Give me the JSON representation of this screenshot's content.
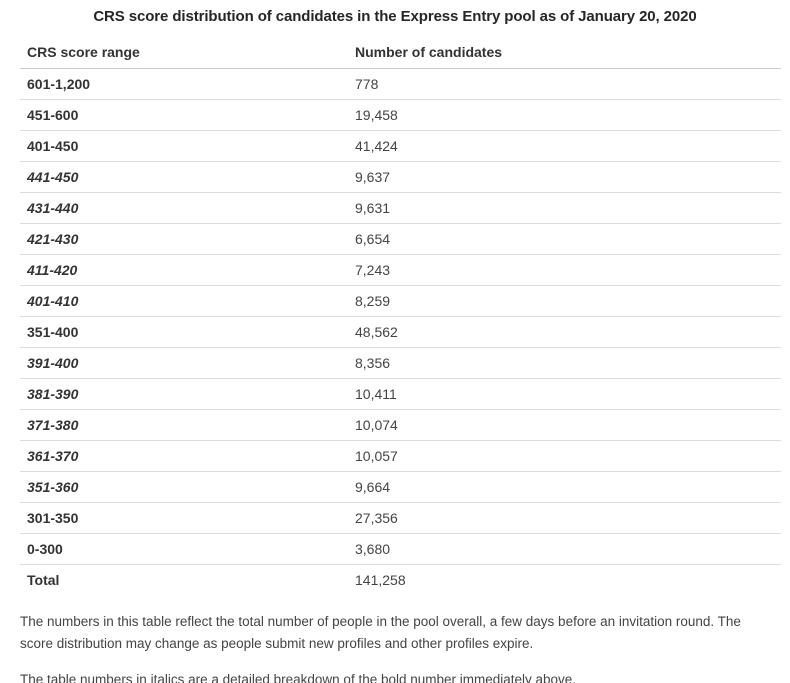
{
  "title": "CRS score distribution of candidates in the Express Entry pool as of January 20, 2020",
  "table": {
    "columns": [
      "CRS score range",
      "Number of candidates"
    ],
    "rows": [
      {
        "range": "601-1,200",
        "candidates": "778",
        "style": "main"
      },
      {
        "range": "451-600",
        "candidates": "19,458",
        "style": "main"
      },
      {
        "range": "401-450",
        "candidates": "41,424",
        "style": "main"
      },
      {
        "range": "441-450",
        "candidates": "9,637",
        "style": "detail"
      },
      {
        "range": "431-440",
        "candidates": "9,631",
        "style": "detail"
      },
      {
        "range": "421-430",
        "candidates": "6,654",
        "style": "detail"
      },
      {
        "range": "411-420",
        "candidates": "7,243",
        "style": "detail"
      },
      {
        "range": "401-410",
        "candidates": "8,259",
        "style": "detail"
      },
      {
        "range": "351-400",
        "candidates": "48,562",
        "style": "main"
      },
      {
        "range": "391-400",
        "candidates": "8,356",
        "style": "detail"
      },
      {
        "range": "381-390",
        "candidates": "10,411",
        "style": "detail"
      },
      {
        "range": "371-380",
        "candidates": "10,074",
        "style": "detail"
      },
      {
        "range": "361-370",
        "candidates": "10,057",
        "style": "detail"
      },
      {
        "range": "351-360",
        "candidates": "9,664",
        "style": "detail"
      },
      {
        "range": "301-350",
        "candidates": "27,356",
        "style": "main"
      },
      {
        "range": "0-300",
        "candidates": "3,680",
        "style": "main"
      },
      {
        "range": "Total",
        "candidates": "141,258",
        "style": "total"
      }
    ]
  },
  "notes": {
    "note1": "The numbers in this table reflect the total number of people in the pool overall, a few days before an invitation round. The score distribution may change as people submit new profiles and other profiles expire.",
    "note2": "The table numbers in italics are a detailed breakdown of the bold number immediately above."
  },
  "colors": {
    "title_text": "#262626",
    "body_text": "#333333",
    "number_text": "#444444",
    "header_border": "#c9c9c9",
    "row_border": "#dcdcdc",
    "background": "#ffffff"
  }
}
